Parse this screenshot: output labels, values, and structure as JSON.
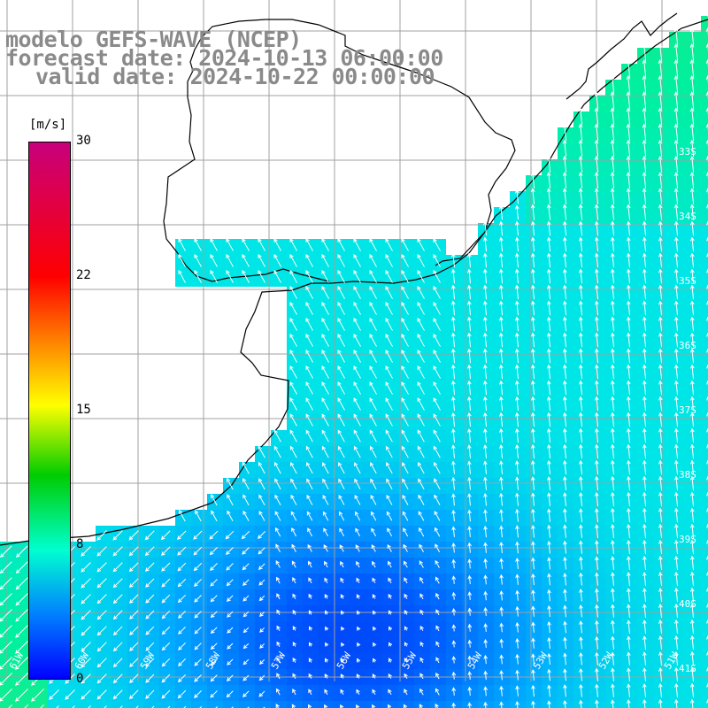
{
  "title": {
    "model": "modelo GEFS-WAVE (NCEP)",
    "forecast": "forecast date: 2024-10-13 06:00:00",
    "valid": "valid date: 2024-10-22 00:00:00"
  },
  "colorbar": {
    "unit": "[m/s]",
    "ticks": [
      {
        "label": "30",
        "value": 30
      },
      {
        "label": "22",
        "value": 22
      },
      {
        "label": "15",
        "value": 15
      },
      {
        "label": "8",
        "value": 8
      },
      {
        "label": "0",
        "value": 0
      }
    ],
    "colors": [
      "#c8007c",
      "#ff0000",
      "#ff8c00",
      "#ffff00",
      "#00cc00",
      "#00ffd0",
      "#0080ff",
      "#0000ff"
    ]
  },
  "map": {
    "field": "wind speed",
    "units": "m/s",
    "lat_labels": [
      "33S",
      "34S",
      "35S",
      "36S",
      "37S",
      "38S",
      "39S",
      "40S",
      "41S"
    ],
    "lon_labels": [
      "61W",
      "60W",
      "59W",
      "58W",
      "57W",
      "56W",
      "55W",
      "54W",
      "53W",
      "52W",
      "51W"
    ],
    "grid_color": "#a0a0a0",
    "coast_color": "#000000",
    "arrow_color": "#ffffff"
  }
}
